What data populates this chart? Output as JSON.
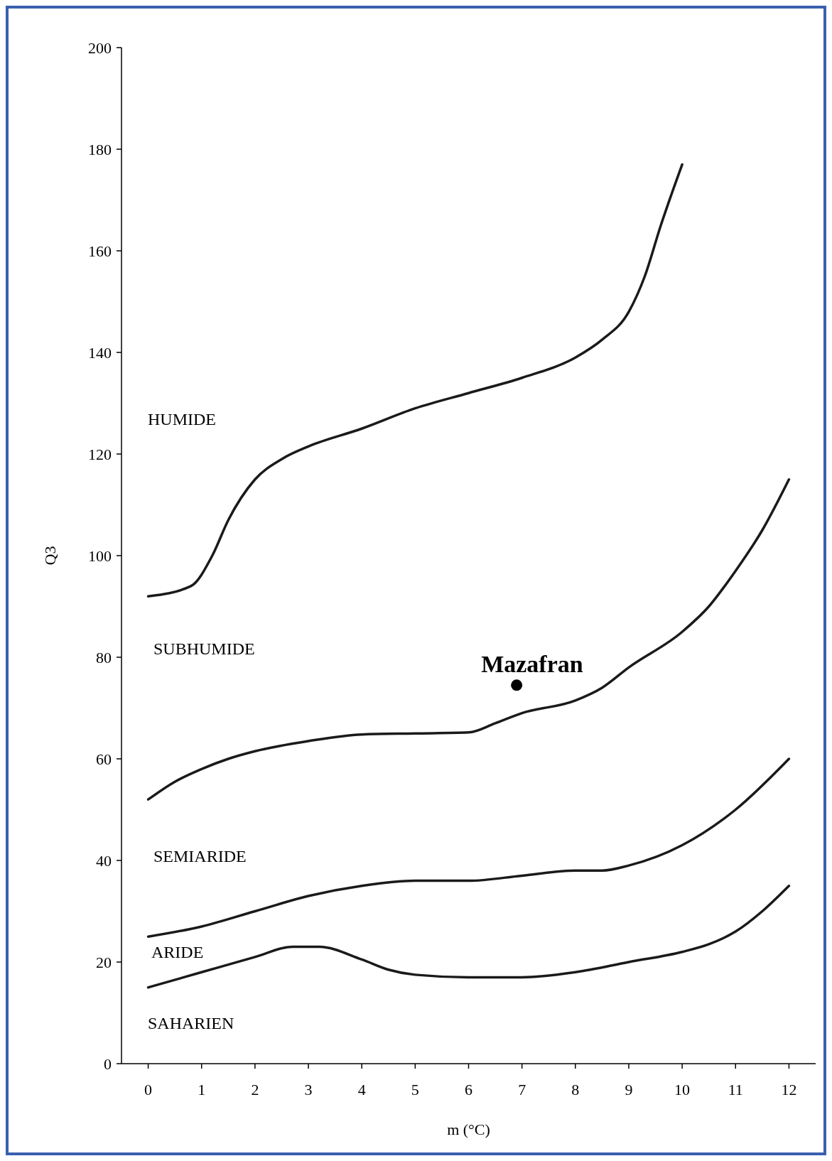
{
  "chart_data": {
    "type": "line",
    "xlabel": "m (°C)",
    "ylabel": "Q3",
    "xlim": [
      -0.5,
      12.5
    ],
    "ylim": [
      0,
      200
    ],
    "xticks": [
      0,
      1,
      2,
      3,
      4,
      5,
      6,
      7,
      8,
      9,
      10,
      11,
      12
    ],
    "yticks": [
      0,
      20,
      40,
      60,
      80,
      100,
      120,
      140,
      160,
      180,
      200
    ],
    "grid": false,
    "marker": "none",
    "line_style": "solid",
    "series": [
      {
        "color": "#1a1a1a",
        "x": [
          0,
          0.8,
          1.2,
          1.5,
          2,
          2.5,
          3,
          4,
          5,
          6,
          7,
          8,
          8.5,
          9,
          9.3,
          9.6,
          10
        ],
        "values": [
          92,
          94,
          100,
          107,
          115,
          119,
          121.5,
          125,
          129,
          132,
          135,
          139,
          142.5,
          148,
          155,
          165,
          177
        ]
      },
      {
        "color": "#1a1a1a",
        "x": [
          0,
          0.5,
          1,
          1.5,
          2,
          3,
          4,
          5,
          6,
          6.5,
          7,
          8,
          8.5,
          9,
          10,
          10.5,
          11,
          11.5,
          12
        ],
        "values": [
          52,
          55.5,
          58,
          60,
          61.5,
          63.5,
          64.8,
          65,
          65.2,
          67,
          69,
          71.5,
          74,
          78,
          85,
          90,
          97,
          105,
          115
        ]
      },
      {
        "color": "#1a1a1a",
        "x": [
          0,
          1,
          2,
          3,
          4,
          5,
          6,
          7,
          8,
          8.5,
          9,
          10,
          11,
          12
        ],
        "values": [
          25,
          27,
          30,
          33,
          35,
          36,
          36,
          37,
          38,
          38,
          39,
          43,
          50,
          60
        ]
      },
      {
        "color": "#1a1a1a",
        "x": [
          0,
          1,
          2,
          2.7,
          3.2,
          4,
          4.5,
          5,
          6,
          7,
          8,
          9,
          10,
          10.5,
          11,
          11.5,
          12
        ],
        "values": [
          15,
          18,
          21,
          23,
          23,
          20.5,
          18.5,
          17.5,
          17,
          17,
          18,
          20,
          22,
          23.5,
          26,
          30,
          35
        ]
      },
      {
        "type": "scatter",
        "name": "Mazafran",
        "marker": "circle",
        "color": "#000000",
        "x": [
          6.9
        ],
        "values": [
          74.5
        ]
      }
    ],
    "annotations": [
      "HUMIDE",
      "SUBHUMIDE",
      "SEMIARIDE",
      "ARIDE",
      "SAHARIEN"
    ]
  }
}
